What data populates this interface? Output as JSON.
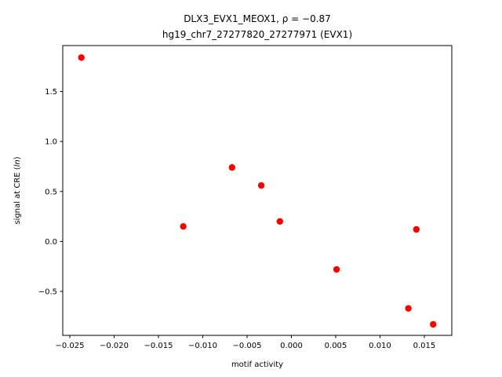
{
  "chart_data": {
    "type": "scatter",
    "title_line1": "DLX3_EVX1_MEOX1, ρ = −0.87",
    "title_line2": "hg19_chr7_27277820_27277971 (EVX1)",
    "xlabel": "motif activity",
    "ylabel": "signal at CRE (ln)",
    "xlim": [
      -0.0258,
      0.0181
    ],
    "ylim": [
      -0.94,
      1.96
    ],
    "xticks": [
      {
        "value": -0.025,
        "label": "−0.025"
      },
      {
        "value": -0.02,
        "label": "−0.020"
      },
      {
        "value": -0.015,
        "label": "−0.015"
      },
      {
        "value": -0.01,
        "label": "−0.010"
      },
      {
        "value": -0.005,
        "label": "−0.005"
      },
      {
        "value": 0.0,
        "label": "0.000"
      },
      {
        "value": 0.005,
        "label": "0.005"
      },
      {
        "value": 0.01,
        "label": "0.010"
      },
      {
        "value": 0.015,
        "label": "0.015"
      }
    ],
    "yticks": [
      {
        "value": -0.5,
        "label": "−0.5"
      },
      {
        "value": 0.0,
        "label": "0.0"
      },
      {
        "value": 0.5,
        "label": "0.5"
      },
      {
        "value": 1.0,
        "label": "1.0"
      },
      {
        "value": 1.5,
        "label": "1.5"
      }
    ],
    "points": [
      {
        "x": -0.0237,
        "y": 1.84
      },
      {
        "x": -0.0122,
        "y": 0.15
      },
      {
        "x": -0.0067,
        "y": 0.74
      },
      {
        "x": -0.0034,
        "y": 0.56
      },
      {
        "x": -0.0013,
        "y": 0.2
      },
      {
        "x": 0.0051,
        "y": -0.28
      },
      {
        "x": 0.0132,
        "y": -0.67
      },
      {
        "x": 0.0141,
        "y": 0.12
      },
      {
        "x": 0.016,
        "y": -0.83
      }
    ],
    "marker_color": "#ff0000",
    "grid": false,
    "legend": "none"
  }
}
